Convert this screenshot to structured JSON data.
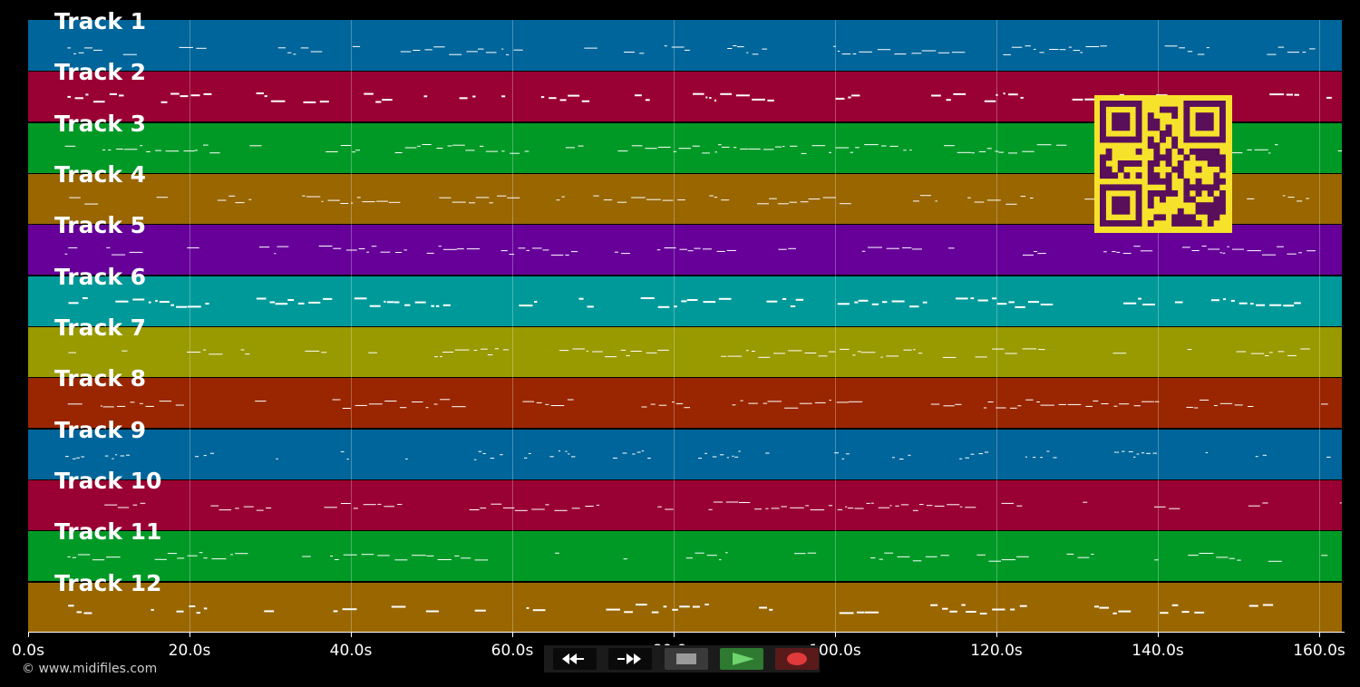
{
  "tracks": [
    {
      "label": "Track 1",
      "color": "#00659a"
    },
    {
      "label": "Track 2",
      "color": "#990033"
    },
    {
      "label": "Track 3",
      "color": "#009926"
    },
    {
      "label": "Track 4",
      "color": "#996600"
    },
    {
      "label": "Track 5",
      "color": "#660099"
    },
    {
      "label": "Track 6",
      "color": "#009999"
    },
    {
      "label": "Track 7",
      "color": "#999900"
    },
    {
      "label": "Track 8",
      "color": "#992600"
    },
    {
      "label": "Track 9",
      "color": "#00659a"
    },
    {
      "label": "Track 10",
      "color": "#990033"
    },
    {
      "label": "Track 11",
      "color": "#009926"
    },
    {
      "label": "Track 12",
      "color": "#996600"
    }
  ],
  "timeline": {
    "tick_labels": [
      "0.0s",
      "20.0s",
      "40.0s",
      "60.0s",
      "80.0s",
      "100.0s",
      "120.0s",
      "140.0s",
      "160.0s"
    ],
    "duration_seconds": 163
  },
  "copyright": "© www.midifiles.com",
  "transport": {
    "rewind_icon": "rewind-icon",
    "fast_forward_icon": "fast-forward-icon",
    "stop_icon": "stop-icon",
    "play_icon": "play-icon",
    "record_icon": "record-icon",
    "play_color": "#2d7a30",
    "record_color": "#5a1a1a"
  },
  "qr_code": {
    "foreground": "#5a0f5a",
    "background": "#f7e22b"
  }
}
